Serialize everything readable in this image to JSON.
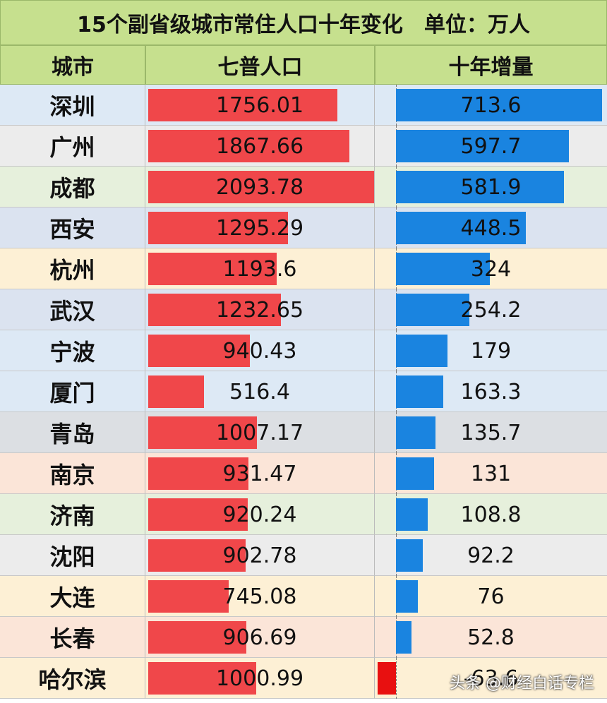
{
  "title": "15个副省级城市常住人口十年变化　单位：万人",
  "headers": {
    "city": "城市",
    "pop": "七普人口",
    "increase": "十年增量"
  },
  "colors": {
    "pop_bar": "#f0474a",
    "increase_bar": "#1a84e0",
    "negative_bar": "#e81010"
  },
  "watermark": "头条 @财经白话专栏",
  "chart_data": {
    "type": "table",
    "title": "15个副省级城市常住人口十年变化　单位：万人",
    "columns": [
      "城市",
      "七普人口",
      "十年增量"
    ],
    "rows": [
      {
        "city": "深圳",
        "pop": 1756.01,
        "pop_label": "1756.01",
        "inc": 713.6,
        "inc_label": "713.6",
        "bg": "#dde9f5"
      },
      {
        "city": "广州",
        "pop": 1867.66,
        "pop_label": "1867.66",
        "inc": 597.7,
        "inc_label": "597.7",
        "bg": "#ececec"
      },
      {
        "city": "成都",
        "pop": 2093.78,
        "pop_label": "2093.78",
        "inc": 581.9,
        "inc_label": "581.9",
        "bg": "#e6f0dc"
      },
      {
        "city": "西安",
        "pop": 1295.29,
        "pop_label": "1295.29",
        "inc": 448.5,
        "inc_label": "448.5",
        "bg": "#dbe3f0"
      },
      {
        "city": "杭州",
        "pop": 1193.6,
        "pop_label": "1193.6",
        "inc": 324,
        "inc_label": "324",
        "bg": "#fdf0d5"
      },
      {
        "city": "武汉",
        "pop": 1232.65,
        "pop_label": "1232.65",
        "inc": 254.2,
        "inc_label": "254.2",
        "bg": "#dbe3f0"
      },
      {
        "city": "宁波",
        "pop": 940.43,
        "pop_label": "940.43",
        "inc": 179,
        "inc_label": "179",
        "bg": "#dde9f5"
      },
      {
        "city": "厦门",
        "pop": 516.4,
        "pop_label": "516.4",
        "inc": 163.3,
        "inc_label": "163.3",
        "bg": "#dde9f5"
      },
      {
        "city": "青岛",
        "pop": 1007.17,
        "pop_label": "1007.17",
        "inc": 135.7,
        "inc_label": "135.7",
        "bg": "#dcdfe3"
      },
      {
        "city": "南京",
        "pop": 931.47,
        "pop_label": "931.47",
        "inc": 131,
        "inc_label": "131",
        "bg": "#fbe5d8"
      },
      {
        "city": "济南",
        "pop": 920.24,
        "pop_label": "920.24",
        "inc": 108.8,
        "inc_label": "108.8",
        "bg": "#e6f0dc"
      },
      {
        "city": "沈阳",
        "pop": 902.78,
        "pop_label": "902.78",
        "inc": 92.2,
        "inc_label": "92.2",
        "bg": "#ececec"
      },
      {
        "city": "大连",
        "pop": 745.08,
        "pop_label": "745.08",
        "inc": 76,
        "inc_label": "76",
        "bg": "#fdf0d5"
      },
      {
        "city": "长春",
        "pop": 906.69,
        "pop_label": "906.69",
        "inc": 52.8,
        "inc_label": "52.8",
        "bg": "#fbe5d8"
      },
      {
        "city": "哈尔滨",
        "pop": 1000.99,
        "pop_label": "1000.99",
        "inc": -63.6,
        "inc_label": "-63.6",
        "bg": "#fdf0d5"
      }
    ],
    "pop_max": 2093.78,
    "inc_max": 713.6
  }
}
